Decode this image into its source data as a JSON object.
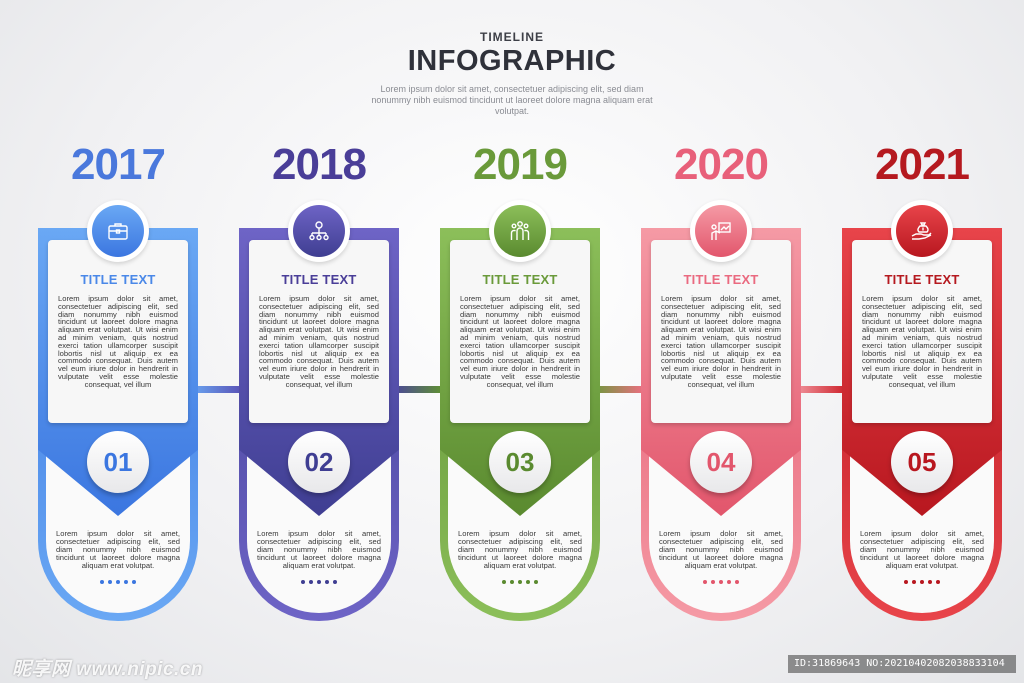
{
  "header": {
    "kicker": "TIMELINE",
    "title": "INFOGRAPHIC",
    "subtitle": "Lorem ipsum dolor sit amet, consectetuer adipiscing elit, sed diam nonummy nibh euismod tincidunt ut laoreet dolore magna aliquam erat volutpat."
  },
  "steps": [
    {
      "year": "2017",
      "number": "01",
      "title": "TITLE TEXT",
      "icon": "briefcase-icon",
      "color_dark": "#3b76e0",
      "color_light": "#6aa8f4",
      "year_color": "#4a78dc",
      "title_color": "#4a88e8",
      "body": "Lorem ipsum dolor sit amet, consectetuer adipiscing elit, sed diam nonummy nibh euismod tincidunt ut laoreet dolore magna aliquam erat volutpat. Ut wisi enim ad minim veniam, quis nostrud exerci tation ullamcorper suscipit lobortis nisl ut aliquip ex ea commodo consequat. Duis autem vel eum iriure dolor in hendrerit in vulputate velit esse molestie consequat, vel illum",
      "bottom": "Lorem ipsum dolor sit amet, consectetuer adipiscing elit, sed diam nonummy nibh euismod tincidunt ut laoreet dolore magna aliquam erat volutpat."
    },
    {
      "year": "2018",
      "number": "02",
      "title": "TITLE TEXT",
      "icon": "org-network-icon",
      "color_dark": "#3f3e92",
      "color_light": "#6e64c6",
      "year_color": "#4a3e98",
      "title_color": "#4a3e98",
      "body": "Lorem ipsum dolor sit amet, consectetuer adipiscing elit, sed diam nonummy nibh euismod tincidunt ut laoreet dolore magna aliquam erat volutpat. Ut wisi enim ad minim veniam, quis nostrud exerci tation ullamcorper suscipit lobortis nisl ut aliquip ex ea commodo consequat. Duis autem vel eum iriure dolor in hendrerit in vulputate velit esse molestie consequat, vel illum",
      "bottom": "Lorem ipsum dolor sit amet, consectetuer adipiscing elit, sed diam nonummy nibh euismod tincidunt ut laoreet dolore magna aliquam erat volutpat."
    },
    {
      "year": "2019",
      "number": "03",
      "title": "TITLE TEXT",
      "icon": "team-icon",
      "color_dark": "#5a8a2f",
      "color_light": "#8cbf5a",
      "year_color": "#6a9a3a",
      "title_color": "#6a9a3a",
      "body": "Lorem ipsum dolor sit amet, consectetuer adipiscing elit, sed diam nonummy nibh euismod tincidunt ut laoreet dolore magna aliquam erat volutpat. Ut wisi enim ad minim veniam, quis nostrud exerci tation ullamcorper suscipit lobortis nisl ut aliquip ex ea commodo consequat. Duis autem vel eum iriure dolor in hendrerit in vulputate velit esse molestie consequat, vel illum",
      "bottom": "Lorem ipsum dolor sit amet, consectetuer adipiscing elit, sed diam nonummy nibh euismod tincidunt ut laoreet dolore magna aliquam erat volutpat."
    },
    {
      "year": "2020",
      "number": "04",
      "title": "TITLE TEXT",
      "icon": "presentation-icon",
      "color_dark": "#e2566c",
      "color_light": "#f59aa5",
      "year_color": "#e8607a",
      "title_color": "#ea6a80",
      "body": "Lorem ipsum dolor sit amet, consectetuer adipiscing elit, sed diam nonummy nibh euismod tincidunt ut laoreet dolore magna aliquam erat volutpat. Ut wisi enim ad minim veniam, quis nostrud exerci tation ullamcorper suscipit lobortis nisl ut aliquip ex ea commodo consequat. Duis autem vel eum iriure dolor in hendrerit in vulputate velit esse molestie consequat, vel illum",
      "bottom": "Lorem ipsum dolor sit amet, consectetuer adipiscing elit, sed diam nonummy nibh euismod tincidunt ut laoreet dolore magna aliquam erat volutpat."
    },
    {
      "year": "2021",
      "number": "05",
      "title": "TITLE TEXT",
      "icon": "money-bag-hand-icon",
      "color_dark": "#b8171f",
      "color_light": "#e8444a",
      "year_color": "#b5191f",
      "title_color": "#b5191f",
      "body": "Lorem ipsum dolor sit amet, consectetuer adipiscing elit, sed diam nonummy nibh euismod tincidunt ut laoreet dolore magna aliquam erat volutpat. Ut wisi enim ad minim veniam, quis nostrud exerci tation ullamcorper suscipit lobortis nisl ut aliquip ex ea commodo consequat. Duis autem vel eum iriure dolor in hendrerit in vulputate velit esse molestie consequat, vel illum",
      "bottom": "Lorem ipsum dolor sit amet, consectetuer adipiscing elit, sed diam nonummy nibh euismod tincidunt ut laoreet dolore magna aliquam erat volutpat."
    }
  ],
  "watermark": {
    "brand": "昵享网 www.nipic.cn",
    "id_text": "ID:31869643 NO:20210402082038833104"
  }
}
